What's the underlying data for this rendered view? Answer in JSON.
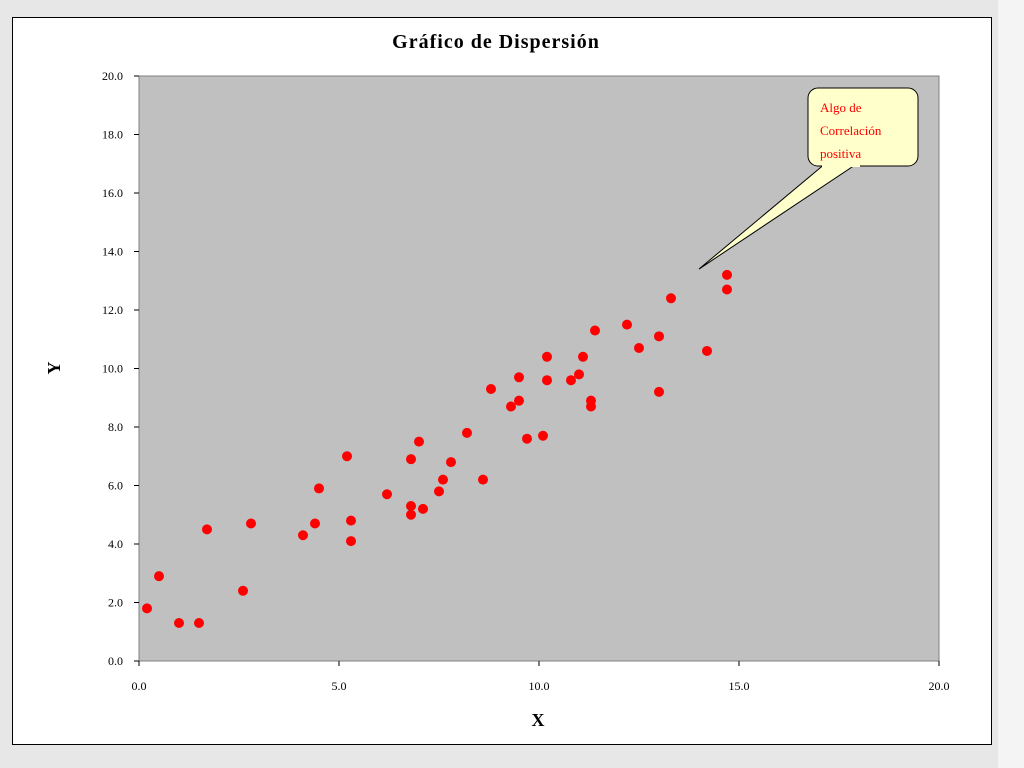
{
  "chart_data": {
    "type": "scatter",
    "title": "Gráfico de Dispersión",
    "xlabel": "X",
    "ylabel": "Y",
    "xlim": [
      0,
      20
    ],
    "ylim": [
      0,
      20
    ],
    "x_ticks": [
      "0.0",
      "5.0",
      "10.0",
      "15.0",
      "20.0"
    ],
    "y_ticks": [
      "0.0",
      "2.0",
      "4.0",
      "6.0",
      "8.0",
      "10.0",
      "12.0",
      "14.0",
      "16.0",
      "18.0",
      "20.0"
    ],
    "grid": false,
    "marker_color": "#ff0000",
    "plot_background": "#c0c0c0",
    "annotation": {
      "lines": [
        "Algo de",
        "Correlación",
        "positiva"
      ],
      "color": "#ff0000",
      "background": "#ffffcc",
      "points_to": [
        14.0,
        13.4
      ]
    },
    "points": [
      [
        0.2,
        1.8
      ],
      [
        0.5,
        2.9
      ],
      [
        1.0,
        1.3
      ],
      [
        1.5,
        1.3
      ],
      [
        1.7,
        4.5
      ],
      [
        2.6,
        2.4
      ],
      [
        2.8,
        4.7
      ],
      [
        4.1,
        4.3
      ],
      [
        4.4,
        4.7
      ],
      [
        4.5,
        5.9
      ],
      [
        5.2,
        7.0
      ],
      [
        5.3,
        4.8
      ],
      [
        5.3,
        4.1
      ],
      [
        6.2,
        5.7
      ],
      [
        6.8,
        5.0
      ],
      [
        6.8,
        5.3
      ],
      [
        6.8,
        6.9
      ],
      [
        7.0,
        7.5
      ],
      [
        7.1,
        5.2
      ],
      [
        7.5,
        5.8
      ],
      [
        7.6,
        6.2
      ],
      [
        7.8,
        6.8
      ],
      [
        8.2,
        7.8
      ],
      [
        8.6,
        6.2
      ],
      [
        8.8,
        9.3
      ],
      [
        9.3,
        8.7
      ],
      [
        9.5,
        8.9
      ],
      [
        9.5,
        9.7
      ],
      [
        9.7,
        7.6
      ],
      [
        10.1,
        7.7
      ],
      [
        10.2,
        9.6
      ],
      [
        10.2,
        10.4
      ],
      [
        10.8,
        9.6
      ],
      [
        11.0,
        9.8
      ],
      [
        11.1,
        10.4
      ],
      [
        11.3,
        8.7
      ],
      [
        11.3,
        8.9
      ],
      [
        11.4,
        11.3
      ],
      [
        12.2,
        11.5
      ],
      [
        12.5,
        10.7
      ],
      [
        13.0,
        11.1
      ],
      [
        13.0,
        9.2
      ],
      [
        13.3,
        12.4
      ],
      [
        14.2,
        10.6
      ],
      [
        14.7,
        13.2
      ],
      [
        14.7,
        12.7
      ]
    ]
  }
}
